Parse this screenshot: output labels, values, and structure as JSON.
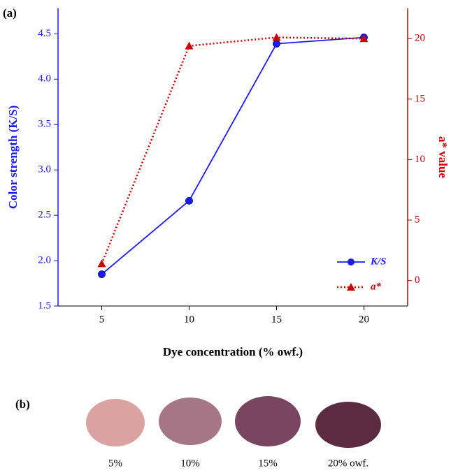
{
  "panel_labels": [
    "(a)",
    "(b)"
  ],
  "chart_data": {
    "type": "line",
    "x_label": "Dye concentration (% owf.)",
    "y_label": "Color strength (K/S)",
    "y2_label": "a* value",
    "x": [
      5,
      10,
      15,
      20
    ],
    "xlim": [
      2.5,
      22.5
    ],
    "xticks": [
      5,
      10,
      15,
      20
    ],
    "ylim": [
      1.5,
      4.78
    ],
    "yticks": [
      1.5,
      2.0,
      2.5,
      3.0,
      3.5,
      4.0,
      4.5
    ],
    "y2lim": [
      -2.1,
      22.5
    ],
    "y2ticks": [
      0,
      5,
      10,
      15,
      20
    ],
    "legend": "lower right",
    "series": [
      {
        "name": "K/S",
        "color": "#1a1aff",
        "marker": "circle",
        "values": [
          1.85,
          2.66,
          4.39,
          4.46
        ]
      },
      {
        "name": "a*",
        "color": "#cc0000",
        "marker": "triangle",
        "dashed": true,
        "axis": "y2",
        "values": [
          1.4,
          19.4,
          20.1,
          20.0
        ]
      }
    ]
  },
  "samples": {
    "labels": [
      "5%",
      "10%",
      "15%",
      "20% owf."
    ]
  }
}
